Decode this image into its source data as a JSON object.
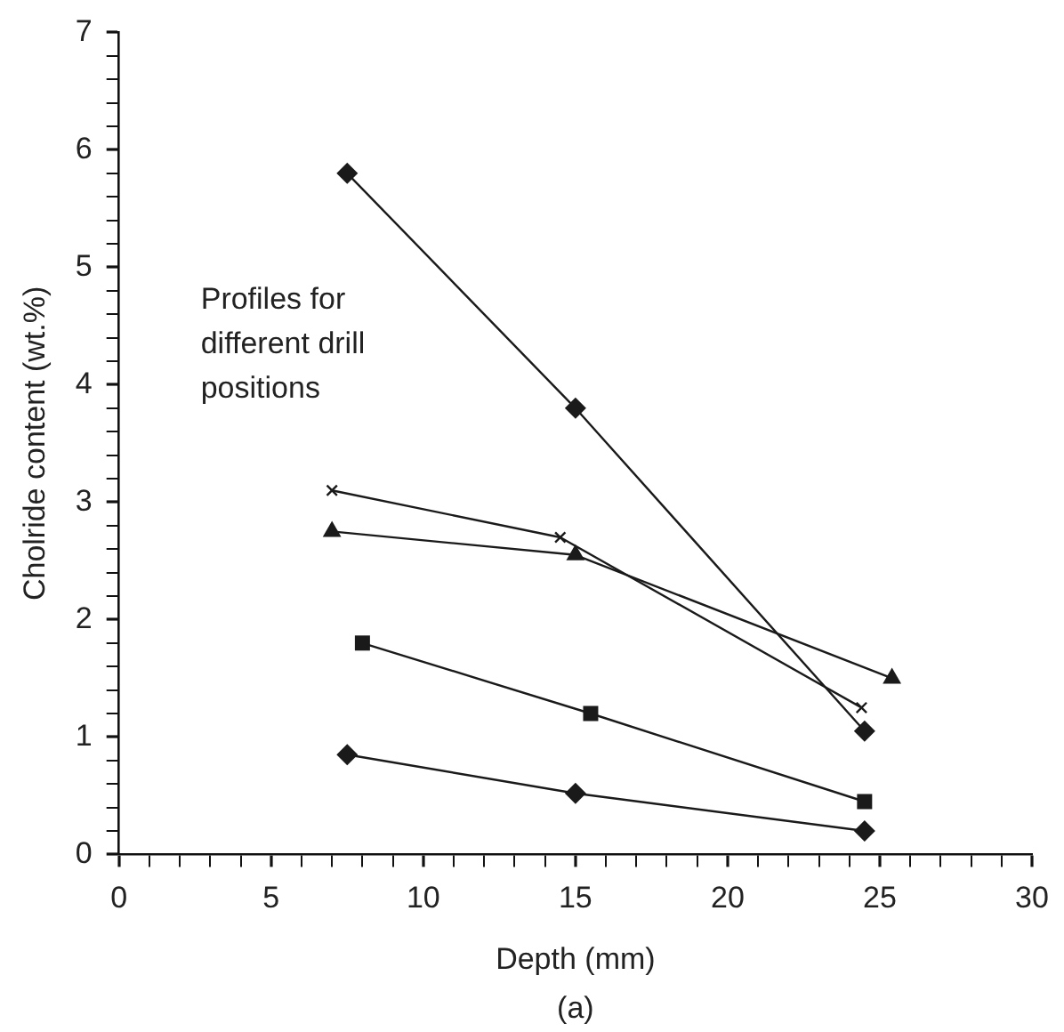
{
  "chart_data": {
    "type": "line",
    "xlabel": "Depth (mm)",
    "ylabel": "Cholride content (wt.%)",
    "annotations": [
      "Profiles for different drill positions",
      "(a)"
    ],
    "series": [
      {
        "color": "#1a1a1a",
        "marker": "diamond",
        "x": [
          7.5,
          15,
          24.5
        ],
        "values": [
          5.8,
          3.8,
          1.05
        ]
      },
      {
        "color": "#1a1a1a",
        "marker": "cross",
        "x": [
          7,
          14.5,
          24.4
        ],
        "values": [
          3.1,
          2.7,
          1.25
        ]
      },
      {
        "color": "#1a1a1a",
        "marker": "triangle",
        "x": [
          7,
          15,
          25.4
        ],
        "values": [
          2.75,
          2.55,
          1.5
        ]
      },
      {
        "color": "#1a1a1a",
        "marker": "square",
        "x": [
          8,
          15.5,
          24.5
        ],
        "values": [
          1.8,
          1.2,
          0.45
        ]
      },
      {
        "color": "#1a1a1a",
        "marker": "diamond",
        "x": [
          7.5,
          15,
          24.5
        ],
        "values": [
          0.85,
          0.52,
          0.2
        ]
      }
    ],
    "xlim": [
      0,
      30
    ],
    "ylim": [
      0,
      7
    ],
    "xticks": [
      0,
      {
        "value": 1,
        "label": null
      },
      {
        "value": 2,
        "label": null
      },
      {
        "value": 3,
        "label": null
      },
      {
        "value": 4,
        "label": null
      },
      5,
      {
        "value": 6,
        "label": null
      },
      {
        "value": 7,
        "label": null
      },
      {
        "value": 8,
        "label": null
      },
      {
        "value": 9,
        "label": null
      },
      10,
      {
        "value": 11,
        "label": null
      },
      {
        "value": 12,
        "label": null
      },
      {
        "value": 13,
        "label": null
      },
      {
        "value": 14,
        "label": null
      },
      15,
      {
        "value": 16,
        "label": null
      },
      {
        "value": 17,
        "label": null
      },
      {
        "value": 18,
        "label": null
      },
      {
        "value": 19,
        "label": null
      },
      20,
      {
        "value": 21,
        "label": null
      },
      {
        "value": 22,
        "label": null
      },
      {
        "value": 23,
        "label": null
      },
      {
        "value": 24,
        "label": null
      },
      25,
      {
        "value": 26,
        "label": null
      },
      {
        "value": 27,
        "label": null
      },
      {
        "value": 28,
        "label": null
      },
      {
        "value": 29,
        "label": null
      },
      30
    ],
    "yticks": [
      0,
      {
        "value": 0.2,
        "label": null
      },
      {
        "value": 0.4,
        "label": null
      },
      {
        "value": 0.6,
        "label": null
      },
      {
        "value": 0.8,
        "label": null
      },
      1,
      {
        "value": 1.2,
        "label": null
      },
      {
        "value": 1.4,
        "label": null
      },
      {
        "value": 1.6,
        "label": null
      },
      {
        "value": 1.8,
        "label": null
      },
      2,
      {
        "value": 2.2,
        "label": null
      },
      {
        "value": 2.4,
        "label": null
      },
      {
        "value": 2.6,
        "label": null
      },
      {
        "value": 2.8,
        "label": null
      },
      3,
      {
        "value": 3.2,
        "label": null
      },
      {
        "value": 3.4,
        "label": null
      },
      {
        "value": 3.6,
        "label": null
      },
      {
        "value": 3.8,
        "label": null
      },
      4,
      {
        "value": 4.2,
        "label": null
      },
      {
        "value": 4.4,
        "label": null
      },
      {
        "value": 4.6,
        "label": null
      },
      {
        "value": 4.8,
        "label": null
      },
      5,
      {
        "value": 5.2,
        "label": null
      },
      {
        "value": 5.4,
        "label": null
      },
      {
        "value": 5.6,
        "label": null
      },
      {
        "value": 5.8,
        "label": null
      },
      6,
      {
        "value": 6.2,
        "label": null
      },
      {
        "value": 6.4,
        "label": null
      },
      {
        "value": 6.6,
        "label": null
      },
      {
        "value": 6.8,
        "label": null
      },
      7
    ],
    "grid": false,
    "legend": false,
    "line_style": "solid"
  }
}
